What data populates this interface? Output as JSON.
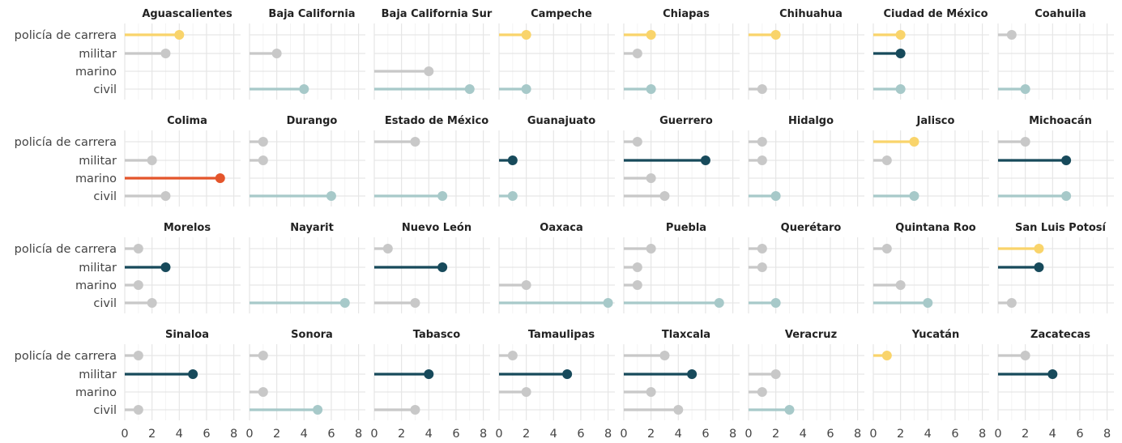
{
  "chart_data": {
    "type": "lollipop",
    "categories": [
      "policía de carrera",
      "militar",
      "marino",
      "civil"
    ],
    "x_ticks": [
      0,
      2,
      4,
      6,
      8
    ],
    "xlim": [
      0,
      8.5
    ],
    "grid": true,
    "colors": {
      "policía de carrera": "#F9D46B",
      "militar": "#174A5B",
      "marino": "#E4552B",
      "civil": "#A7C9C9",
      "muted": "#C8C8C8"
    },
    "panels": [
      {
        "state": "Aguascalientes",
        "values": {
          "policía de carrera": 4,
          "militar": 3,
          "civil": null,
          "marino": null
        },
        "highlight": [
          "policía de carrera"
        ]
      },
      {
        "state": "Baja California",
        "values": {
          "policía de carrera": null,
          "militar": 2,
          "marino": null,
          "civil": 4
        },
        "highlight": [
          "civil"
        ]
      },
      {
        "state": "Baja California Sur",
        "values": {
          "policía de carrera": null,
          "militar": null,
          "marino": 4,
          "civil": 7
        },
        "highlight": [
          "civil"
        ]
      },
      {
        "state": "Campeche",
        "values": {
          "policía de carrera": 2,
          "militar": null,
          "marino": null,
          "civil": 2
        },
        "highlight": [
          "policía de carrera",
          "civil"
        ]
      },
      {
        "state": "Chiapas",
        "values": {
          "policía de carrera": 2,
          "militar": 1,
          "marino": null,
          "civil": 2
        },
        "highlight": [
          "policía de carrera",
          "civil"
        ]
      },
      {
        "state": "Chihuahua",
        "values": {
          "policía de carrera": 2,
          "militar": null,
          "marino": null,
          "civil": 1
        },
        "highlight": [
          "policía de carrera"
        ]
      },
      {
        "state": "Ciudad de México",
        "values": {
          "policía de carrera": 2,
          "militar": 2,
          "marino": null,
          "civil": 2
        },
        "highlight": [
          "policía de carrera",
          "militar",
          "civil"
        ]
      },
      {
        "state": "Coahuila",
        "values": {
          "policía de carrera": 1,
          "militar": null,
          "marino": null,
          "civil": 2
        },
        "highlight": [
          "civil"
        ]
      },
      {
        "state": "Colima",
        "values": {
          "policía de carrera": null,
          "militar": 2,
          "marino": 7,
          "civil": 3
        },
        "highlight": [
          "marino"
        ]
      },
      {
        "state": "Durango",
        "values": {
          "policía de carrera": 1,
          "militar": 1,
          "marino": null,
          "civil": 6
        },
        "highlight": [
          "civil"
        ]
      },
      {
        "state": "Estado de México",
        "values": {
          "policía de carrera": 3,
          "militar": null,
          "marino": null,
          "civil": 5
        },
        "highlight": [
          "civil"
        ]
      },
      {
        "state": "Guanajuato",
        "values": {
          "policía de carrera": null,
          "militar": 1,
          "marino": null,
          "civil": 1
        },
        "highlight": [
          "militar",
          "civil"
        ]
      },
      {
        "state": "Guerrero",
        "values": {
          "policía de carrera": 1,
          "militar": 6,
          "marino": 2,
          "civil": 3
        },
        "highlight": [
          "militar"
        ]
      },
      {
        "state": "Hidalgo",
        "values": {
          "policía de carrera": 1,
          "militar": 1,
          "marino": null,
          "civil": 2
        },
        "highlight": [
          "civil"
        ]
      },
      {
        "state": "Jalisco",
        "values": {
          "policía de carrera": 3,
          "militar": 1,
          "marino": null,
          "civil": 3
        },
        "highlight": [
          "policía de carrera",
          "civil"
        ]
      },
      {
        "state": "Michoacán",
        "values": {
          "policía de carrera": 2,
          "militar": 5,
          "marino": null,
          "civil": 5
        },
        "highlight": [
          "militar",
          "civil"
        ]
      },
      {
        "state": "Morelos",
        "values": {
          "policía de carrera": 1,
          "militar": 3,
          "marino": 1,
          "civil": 2
        },
        "highlight": [
          "militar"
        ]
      },
      {
        "state": "Nayarit",
        "values": {
          "policía de carrera": null,
          "militar": null,
          "marino": null,
          "civil": 7
        },
        "highlight": [
          "civil"
        ]
      },
      {
        "state": "Nuevo León",
        "values": {
          "policía de carrera": 1,
          "militar": 5,
          "marino": null,
          "civil": 3
        },
        "highlight": [
          "militar"
        ]
      },
      {
        "state": "Oaxaca",
        "values": {
          "policía de carrera": null,
          "militar": null,
          "marino": 2,
          "civil": 8
        },
        "highlight": [
          "civil"
        ]
      },
      {
        "state": "Puebla",
        "values": {
          "policía de carrera": 2,
          "militar": 1,
          "marino": 1,
          "civil": 7
        },
        "highlight": [
          "civil"
        ]
      },
      {
        "state": "Querétaro",
        "values": {
          "policía de carrera": 1,
          "militar": 1,
          "marino": null,
          "civil": 2
        },
        "highlight": [
          "civil"
        ]
      },
      {
        "state": "Quintana Roo",
        "values": {
          "policía de carrera": 1,
          "militar": null,
          "marino": 2,
          "civil": 4
        },
        "highlight": [
          "civil"
        ]
      },
      {
        "state": "San Luis Potosí",
        "values": {
          "policía de carrera": 3,
          "militar": 3,
          "marino": null,
          "civil": 1
        },
        "highlight": [
          "policía de carrera",
          "militar"
        ]
      },
      {
        "state": "Sinaloa",
        "values": {
          "policía de carrera": 1,
          "militar": 5,
          "marino": null,
          "civil": 1
        },
        "highlight": [
          "militar"
        ]
      },
      {
        "state": "Sonora",
        "values": {
          "policía de carrera": 1,
          "militar": null,
          "marino": 1,
          "civil": 5
        },
        "highlight": [
          "civil"
        ]
      },
      {
        "state": "Tabasco",
        "values": {
          "policía de carrera": null,
          "militar": 4,
          "marino": null,
          "civil": 3
        },
        "highlight": [
          "militar"
        ]
      },
      {
        "state": "Tamaulipas",
        "values": {
          "policía de carrera": 1,
          "militar": 5,
          "marino": 2,
          "civil": null
        },
        "highlight": [
          "militar"
        ]
      },
      {
        "state": "Tlaxcala",
        "values": {
          "policía de carrera": 3,
          "militar": 5,
          "marino": 2,
          "civil": 4
        },
        "highlight": [
          "militar"
        ]
      },
      {
        "state": "Veracruz",
        "values": {
          "policía de carrera": null,
          "militar": 2,
          "marino": 1,
          "civil": 3
        },
        "highlight": [
          "civil"
        ]
      },
      {
        "state": "Yucatán",
        "values": {
          "policía de carrera": 1,
          "militar": null,
          "marino": null,
          "civil": null
        },
        "highlight": [
          "policía de carrera"
        ]
      },
      {
        "state": "Zacatecas",
        "values": {
          "policía de carrera": 2,
          "militar": 4,
          "marino": null,
          "civil": null
        },
        "highlight": [
          "militar"
        ]
      }
    ]
  }
}
